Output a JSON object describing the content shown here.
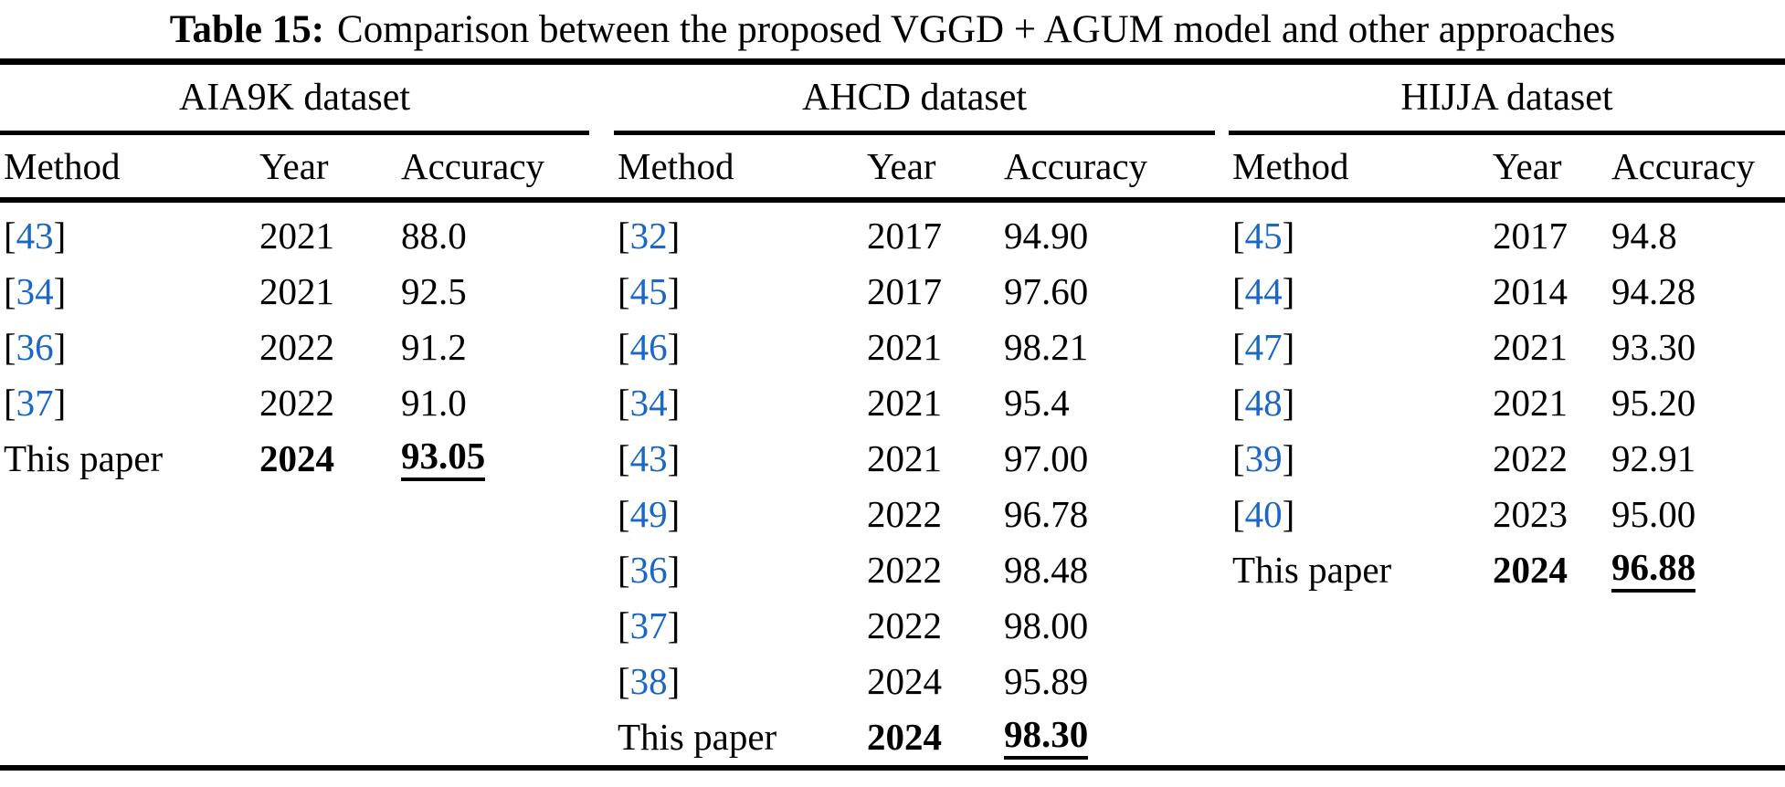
{
  "title": {
    "label": "Table 15:",
    "text": "Comparison between the proposed VGGD + AGUM model and other approaches"
  },
  "columns": [
    "Method",
    "Year",
    "Accuracy"
  ],
  "link_color": "#1c67c6",
  "groups": [
    {
      "dataset": "AIA9K dataset",
      "rows": [
        {
          "cite": "43",
          "year": "2021",
          "accuracy": "88.0",
          "highlight": false
        },
        {
          "cite": "34",
          "year": "2021",
          "accuracy": "92.5",
          "highlight": false
        },
        {
          "cite": "36",
          "year": "2022",
          "accuracy": "91.2",
          "highlight": false
        },
        {
          "cite": "37",
          "year": "2022",
          "accuracy": "91.0",
          "highlight": false
        },
        {
          "method": "This paper",
          "year": "2024",
          "accuracy": "93.05",
          "highlight": true
        }
      ]
    },
    {
      "dataset": "AHCD dataset",
      "rows": [
        {
          "cite": "32",
          "year": "2017",
          "accuracy": "94.90",
          "highlight": false
        },
        {
          "cite": "45",
          "year": "2017",
          "accuracy": "97.60",
          "highlight": false
        },
        {
          "cite": "46",
          "year": "2021",
          "accuracy": "98.21",
          "highlight": false
        },
        {
          "cite": "34",
          "year": "2021",
          "accuracy": "95.4",
          "highlight": false
        },
        {
          "cite": "43",
          "year": "2021",
          "accuracy": "97.00",
          "highlight": false
        },
        {
          "cite": "49",
          "year": "2022",
          "accuracy": "96.78",
          "highlight": false
        },
        {
          "cite": "36",
          "year": "2022",
          "accuracy": "98.48",
          "highlight": false
        },
        {
          "cite": "37",
          "year": "2022",
          "accuracy": "98.00",
          "highlight": false
        },
        {
          "cite": "38",
          "year": "2024",
          "accuracy": "95.89",
          "highlight": false
        },
        {
          "method": "This paper",
          "year": "2024",
          "accuracy": "98.30",
          "highlight": true
        }
      ]
    },
    {
      "dataset": "HIJJA dataset",
      "rows": [
        {
          "cite": "45",
          "year": "2017",
          "accuracy": "94.8",
          "highlight": false
        },
        {
          "cite": "44",
          "year": "2014",
          "accuracy": "94.28",
          "highlight": false
        },
        {
          "cite": "47",
          "year": "2021",
          "accuracy": "93.30",
          "highlight": false
        },
        {
          "cite": "48",
          "year": "2021",
          "accuracy": "95.20",
          "highlight": false
        },
        {
          "cite": "39",
          "year": "2022",
          "accuracy": "92.91",
          "highlight": false
        },
        {
          "cite": "40",
          "year": "2023",
          "accuracy": "95.00",
          "highlight": false
        },
        {
          "method": "This paper",
          "year": "2024",
          "accuracy": "96.88",
          "highlight": true
        }
      ]
    }
  ]
}
